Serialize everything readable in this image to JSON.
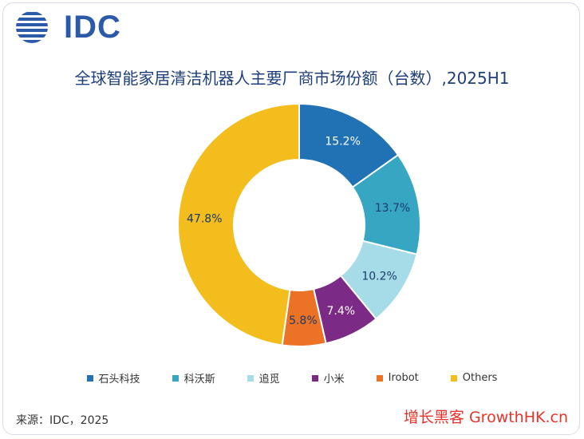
{
  "logo": {
    "text": "IDC",
    "color": "#2b5aa8"
  },
  "title": "全球智能家居清洁机器人主要厂商市场份额（台数）,2025H1",
  "source": "来源：IDC，2025",
  "watermark": "增长黑客 GrowthHK.cn",
  "chart_data": {
    "type": "pie",
    "donut": true,
    "title": "全球智能家居清洁机器人主要厂商市场份额（台数）,2025H1",
    "legend_position": "bottom",
    "slices": [
      {
        "name": "石头科技",
        "value": 15.2,
        "label": "15.2%",
        "color": "#2171b5",
        "label_color": "#ffffff"
      },
      {
        "name": "科沃斯",
        "value": 13.7,
        "label": "13.7%",
        "color": "#36a6c3",
        "label_color": "#1b3a6b"
      },
      {
        "name": "追觅",
        "value": 10.2,
        "label": "10.2%",
        "color": "#a6dce8",
        "label_color": "#1b3a6b"
      },
      {
        "name": "小米",
        "value": 7.4,
        "label": "7.4%",
        "color": "#7b2a86",
        "label_color": "#ffffff"
      },
      {
        "name": "Irobot",
        "value": 5.8,
        "label": "5.8%",
        "color": "#ec7226",
        "label_color": "#1b3a6b"
      },
      {
        "name": "Others",
        "value": 47.8,
        "label": "47.8%",
        "color": "#f2bd1d",
        "label_color": "#1b3a6b"
      }
    ]
  }
}
